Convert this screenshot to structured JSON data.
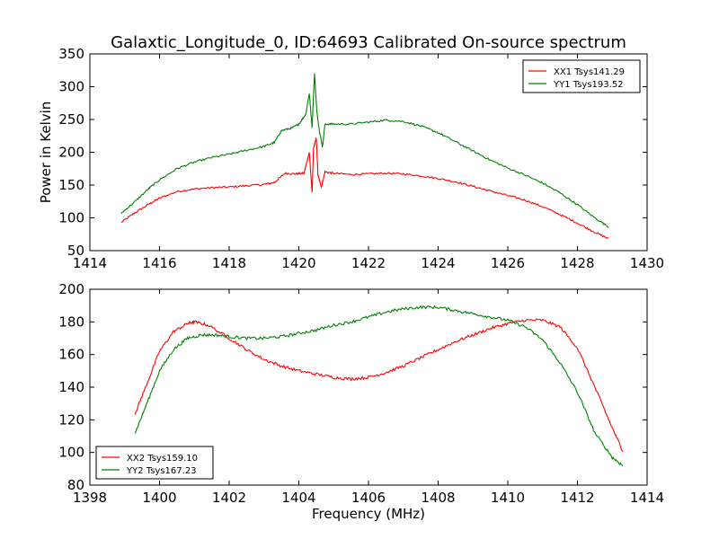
{
  "figure": {
    "title": "Galaxtic_Longitude_0, ID:64693 Calibrated On-source spectrum",
    "xlabel": "Frequency (MHz)"
  },
  "chart_data": [
    {
      "type": "line",
      "ylabel": "Power in Kelvin",
      "xlim": [
        1414,
        1430
      ],
      "ylim": [
        50,
        350
      ],
      "xticks": [
        1414,
        1416,
        1418,
        1420,
        1422,
        1424,
        1426,
        1428,
        1430
      ],
      "yticks": [
        50,
        100,
        150,
        200,
        250,
        300,
        350
      ],
      "legend_position": "top-right",
      "grid": false,
      "series": [
        {
          "name": "XX1 Tsys141.29",
          "color": "#ff0000",
          "x": [
            1414.9,
            1415.3,
            1415.7,
            1416.0,
            1416.5,
            1417.0,
            1417.5,
            1418.0,
            1418.5,
            1419.0,
            1419.3,
            1419.6,
            1419.9,
            1420.15,
            1420.3,
            1420.38,
            1420.42,
            1420.5,
            1420.55,
            1420.65,
            1420.75,
            1421.0,
            1421.5,
            1422.0,
            1422.5,
            1423.0,
            1423.5,
            1424.0,
            1424.5,
            1425.0,
            1425.5,
            1426.0,
            1426.5,
            1427.0,
            1427.5,
            1428.0,
            1428.5,
            1428.9
          ],
          "values": [
            93,
            108,
            121,
            130,
            140,
            144,
            146,
            147,
            149,
            151,
            154,
            168,
            167,
            168,
            200,
            138,
            205,
            222,
            165,
            147,
            170,
            168,
            166,
            167,
            168,
            167,
            164,
            160,
            155,
            148,
            141,
            134,
            127,
            117,
            105,
            92,
            78,
            68
          ]
        },
        {
          "name": "YY1 Tsys193.52",
          "color": "#008000",
          "x": [
            1414.9,
            1415.3,
            1415.7,
            1416.0,
            1416.5,
            1417.0,
            1417.5,
            1418.0,
            1418.5,
            1419.0,
            1419.3,
            1419.5,
            1419.8,
            1420.0,
            1420.2,
            1420.3,
            1420.38,
            1420.45,
            1420.52,
            1420.6,
            1420.68,
            1420.75,
            1421.0,
            1421.5,
            1422.0,
            1422.5,
            1423.0,
            1423.5,
            1424.0,
            1424.5,
            1425.0,
            1425.5,
            1426.0,
            1426.5,
            1427.0,
            1427.5,
            1428.0,
            1428.5,
            1428.9
          ],
          "values": [
            107,
            125,
            145,
            158,
            175,
            185,
            192,
            197,
            203,
            209,
            215,
            233,
            237,
            243,
            258,
            290,
            238,
            320,
            260,
            230,
            208,
            243,
            243,
            243,
            246,
            249,
            247,
            240,
            230,
            216,
            202,
            188,
            176,
            165,
            153,
            138,
            120,
            100,
            86
          ]
        }
      ]
    },
    {
      "type": "line",
      "ylabel": "",
      "xlim": [
        1398,
        1414
      ],
      "ylim": [
        80,
        200
      ],
      "xticks": [
        1398,
        1400,
        1402,
        1404,
        1406,
        1408,
        1410,
        1412,
        1414
      ],
      "yticks": [
        80,
        100,
        120,
        140,
        160,
        180,
        200
      ],
      "legend_position": "bottom-left",
      "grid": false,
      "series": [
        {
          "name": "XX2 Tsys159.10",
          "color": "#ff0000",
          "x": [
            1399.3,
            1399.6,
            1400.0,
            1400.4,
            1400.8,
            1401.0,
            1401.4,
            1402.0,
            1402.5,
            1403.0,
            1403.5,
            1404.0,
            1404.5,
            1405.0,
            1405.5,
            1406.0,
            1406.5,
            1407.0,
            1407.5,
            1408.0,
            1408.5,
            1409.0,
            1409.5,
            1410.0,
            1410.5,
            1411.0,
            1411.5,
            1412.0,
            1412.5,
            1413.0,
            1413.3
          ],
          "values": [
            124,
            140,
            162,
            174,
            179,
            180,
            178,
            170,
            163,
            157,
            153,
            150,
            148,
            146,
            145,
            146,
            149,
            153,
            158,
            163,
            168,
            172,
            176,
            179,
            181,
            181,
            177,
            164,
            140,
            115,
            101
          ]
        },
        {
          "name": "YY2 Tsys167.23",
          "color": "#008000",
          "x": [
            1399.3,
            1399.6,
            1400.0,
            1400.4,
            1400.8,
            1401.2,
            1401.6,
            1402.0,
            1402.5,
            1403.0,
            1403.5,
            1404.0,
            1404.5,
            1405.0,
            1405.5,
            1406.0,
            1406.5,
            1407.0,
            1407.5,
            1408.0,
            1408.5,
            1409.0,
            1409.5,
            1410.0,
            1410.5,
            1411.0,
            1411.5,
            1412.0,
            1412.5,
            1413.0,
            1413.3
          ],
          "values": [
            112,
            128,
            150,
            163,
            170,
            172,
            172,
            171,
            170,
            170,
            171,
            173,
            175,
            178,
            180,
            183,
            186,
            188,
            189,
            189,
            187,
            185,
            183,
            181,
            177,
            169,
            155,
            137,
            112,
            97,
            92
          ]
        }
      ]
    }
  ]
}
